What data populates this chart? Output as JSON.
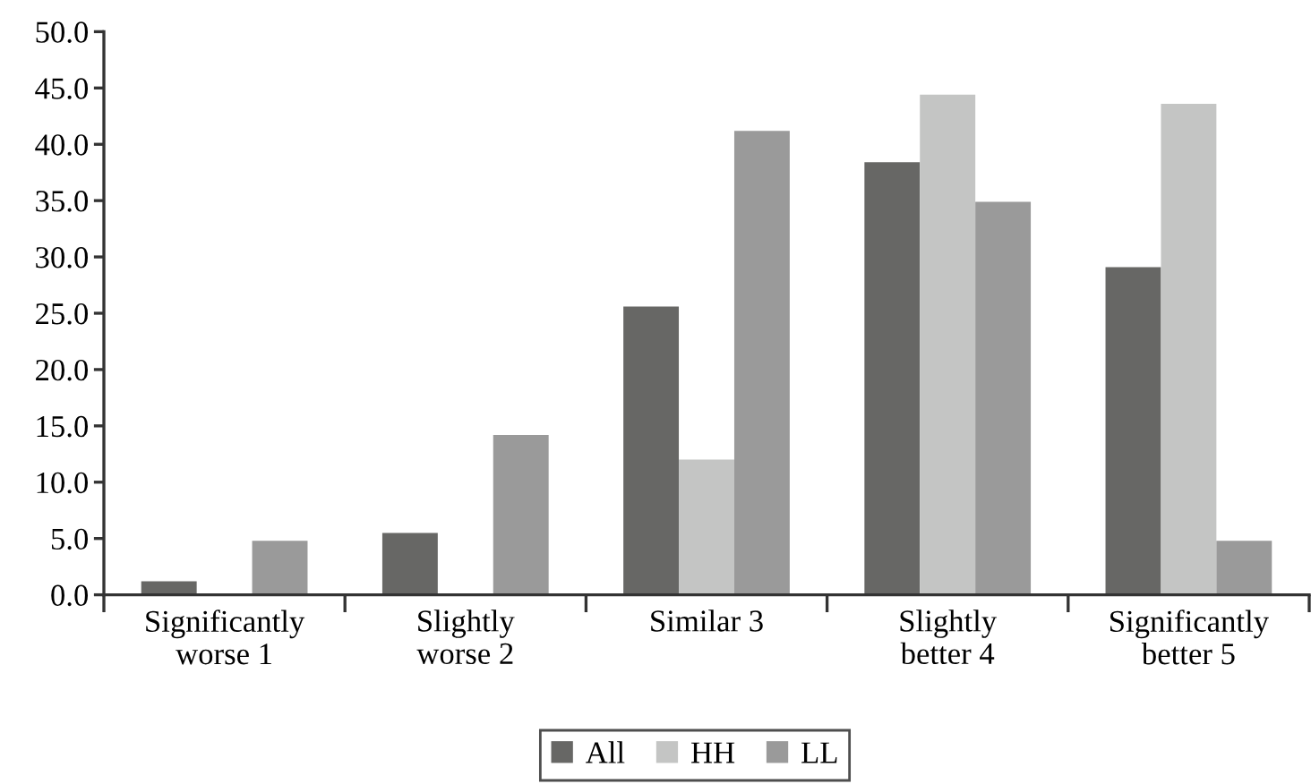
{
  "chart_data": {
    "type": "bar",
    "categories": [
      "Significantly\nworse 1",
      "Slightly\nworse 2",
      "Similar 3",
      "Slightly\nbetter 4",
      "Significantly\nbetter 5"
    ],
    "series": [
      {
        "name": "All",
        "color": "#676765",
        "values": [
          1.2,
          5.5,
          25.6,
          38.4,
          29.1
        ]
      },
      {
        "name": "HH",
        "color": "#c4c5c4",
        "values": [
          0,
          0,
          12.0,
          44.4,
          43.6
        ]
      },
      {
        "name": "LL",
        "color": "#9a9a9a",
        "values": [
          4.8,
          14.2,
          41.2,
          34.9,
          4.8
        ]
      }
    ],
    "ylim": [
      0,
      50
    ],
    "yticks": [
      {
        "value": 0,
        "label": "0.0"
      },
      {
        "value": 5,
        "label": "5.0"
      },
      {
        "value": 10,
        "label": "10.0"
      },
      {
        "value": 15,
        "label": "15.0"
      },
      {
        "value": 20,
        "label": "20.0"
      },
      {
        "value": 25,
        "label": "25.0"
      },
      {
        "value": 30,
        "label": "30.0"
      },
      {
        "value": 35,
        "label": "35.0"
      },
      {
        "value": 40,
        "label": "40.0"
      },
      {
        "value": 45,
        "label": "45.0"
      },
      {
        "value": 50,
        "label": "50.0"
      }
    ],
    "grid": false,
    "legend": "bottom"
  }
}
